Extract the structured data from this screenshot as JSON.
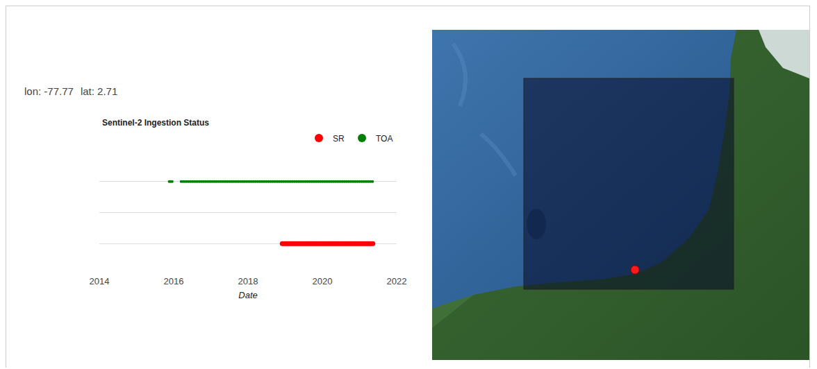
{
  "header": {
    "coordinates": [
      {
        "label": "lon:",
        "value": -77.77
      },
      {
        "label": "lat:",
        "value": 2.71
      }
    ]
  },
  "chart_data": {
    "type": "scatter",
    "title": "Sentinel-2 Ingestion Status",
    "x_label": "Date",
    "xlim": [
      2014,
      2022
    ],
    "xticks": [
      2014,
      2016,
      2018,
      2020,
      2022
    ],
    "ylim": [
      0,
      4
    ],
    "yticks": [
      0,
      1,
      2,
      3,
      4
    ],
    "grid": true,
    "tick_labels": "x",
    "legend": "top-right",
    "marker": "circle",
    "series": [
      {
        "name": "SR",
        "color": "red",
        "x": [
          2018.92,
          2018.96,
          2019,
          2019.04,
          2019.08,
          2019.12,
          2019.16,
          2019.2,
          2019.24,
          2019.28,
          2019.32,
          2019.36,
          2019.4,
          2019.44,
          2019.48,
          2019.52,
          2019.56,
          2019.6,
          2019.64,
          2019.68,
          2019.72,
          2019.76,
          2019.8,
          2019.84,
          2019.88,
          2019.92,
          2019.96,
          2020,
          2020.04,
          2020.08,
          2020.12,
          2020.16,
          2020.2,
          2020.24,
          2020.28,
          2020.32,
          2020.36,
          2020.4,
          2020.44,
          2020.48,
          2020.52,
          2020.56,
          2020.6,
          2020.64,
          2020.68,
          2020.72,
          2020.76,
          2020.8,
          2020.84,
          2020.88,
          2020.92,
          2020.96,
          2021,
          2021.04,
          2021.08,
          2021.12,
          2021.16,
          2021.2,
          2021.24,
          2021.28,
          2021.32,
          2021.36
        ],
        "values": [
          1,
          1,
          1,
          1,
          1,
          1,
          1,
          1,
          1,
          1,
          1,
          1,
          1,
          1,
          1,
          1,
          1,
          1,
          1,
          1,
          1,
          1,
          1,
          1,
          1,
          1,
          1,
          1,
          1,
          1,
          1,
          1,
          1,
          1,
          1,
          1,
          1,
          1,
          1,
          1,
          1,
          1,
          1,
          1,
          1,
          1,
          1,
          1,
          1,
          1,
          1,
          1,
          1,
          1,
          1,
          1,
          1,
          1,
          1,
          1,
          1,
          1
        ]
      },
      {
        "name": "TOA",
        "color": "green",
        "x": [
          2015.88,
          2015.92,
          2015.96,
          2016.2,
          2016.25,
          2016.3,
          2016.35,
          2016.4,
          2016.45,
          2016.5,
          2016.55,
          2016.6,
          2016.65,
          2016.7,
          2016.75,
          2016.8,
          2016.85,
          2016.9,
          2016.95,
          2017,
          2017.05,
          2017.1,
          2017.15,
          2017.2,
          2017.25,
          2017.3,
          2017.35,
          2017.4,
          2017.45,
          2017.5,
          2017.55,
          2017.6,
          2017.65,
          2017.7,
          2017.75,
          2017.8,
          2017.85,
          2017.9,
          2017.95,
          2018,
          2018.05,
          2018.1,
          2018.15,
          2018.2,
          2018.25,
          2018.3,
          2018.35,
          2018.4,
          2018.45,
          2018.5,
          2018.55,
          2018.6,
          2018.65,
          2018.7,
          2018.75,
          2018.8,
          2018.85,
          2018.9,
          2018.95,
          2019,
          2019.05,
          2019.1,
          2019.15,
          2019.2,
          2019.25,
          2019.3,
          2019.35,
          2019.4,
          2019.45,
          2019.5,
          2019.55,
          2019.6,
          2019.65,
          2019.7,
          2019.75,
          2019.8,
          2019.85,
          2019.9,
          2019.95,
          2020,
          2020.05,
          2020.1,
          2020.15,
          2020.2,
          2020.25,
          2020.3,
          2020.35,
          2020.4,
          2020.45,
          2020.5,
          2020.55,
          2020.6,
          2020.65,
          2020.7,
          2020.75,
          2020.8,
          2020.85,
          2020.9,
          2020.95,
          2021,
          2021.05,
          2021.1,
          2021.15,
          2021.2,
          2021.25,
          2021.3,
          2021.35
        ],
        "values": [
          3,
          3,
          3,
          3,
          3,
          3,
          3,
          3,
          3,
          3,
          3,
          3,
          3,
          3,
          3,
          3,
          3,
          3,
          3,
          3,
          3,
          3,
          3,
          3,
          3,
          3,
          3,
          3,
          3,
          3,
          3,
          3,
          3,
          3,
          3,
          3,
          3,
          3,
          3,
          3,
          3,
          3,
          3,
          3,
          3,
          3,
          3,
          3,
          3,
          3,
          3,
          3,
          3,
          3,
          3,
          3,
          3,
          3,
          3,
          3,
          3,
          3,
          3,
          3,
          3,
          3,
          3,
          3,
          3,
          3,
          3,
          3,
          3,
          3,
          3,
          3,
          3,
          3,
          3,
          3,
          3,
          3,
          3,
          3,
          3,
          3,
          3,
          3,
          3,
          3,
          3,
          3,
          3,
          3,
          3,
          3,
          3,
          3,
          3,
          3,
          3,
          3,
          3,
          3,
          3,
          3,
          3
        ]
      }
    ]
  }
}
